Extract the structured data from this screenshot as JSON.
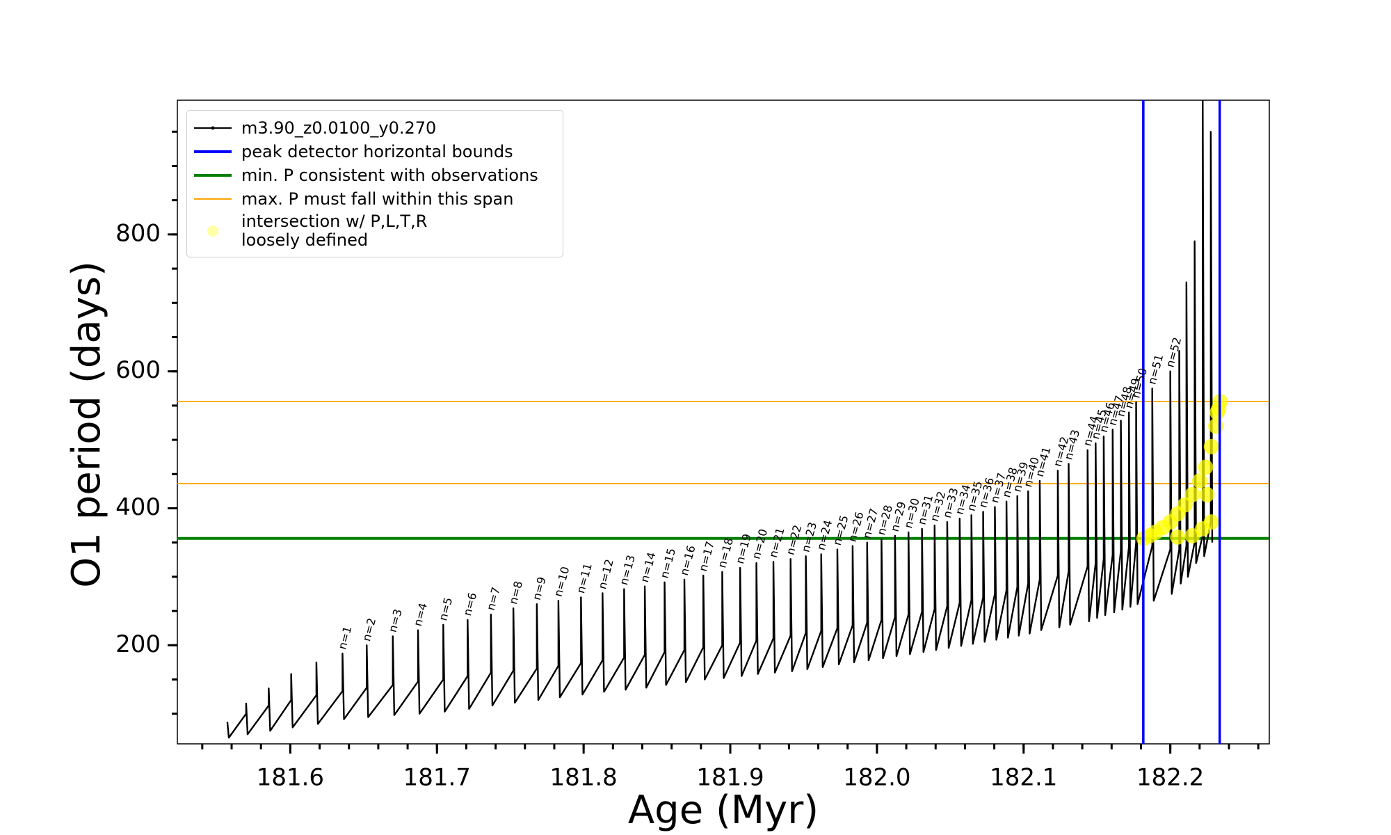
{
  "chart_data": {
    "type": "line",
    "xlabel": "Age (Myr)",
    "ylabel": "O1 period (days)",
    "xlim": [
      181.523,
      182.2675
    ],
    "ylim": [
      56,
      996
    ],
    "xticks": [
      181.6,
      181.7,
      181.8,
      181.9,
      {
        "value": 182.0,
        "label": "182.0"
      },
      182.1,
      182.2
    ],
    "yticks": [
      200,
      400,
      600,
      800
    ],
    "xminorticks": [
      181.54,
      181.56,
      181.58,
      181.6,
      181.62,
      181.64,
      181.66,
      181.68,
      181.7,
      181.72,
      181.74,
      181.76,
      181.78,
      181.8,
      181.82,
      181.84,
      181.86,
      181.88,
      181.9,
      181.92,
      181.94,
      181.96,
      181.98,
      182.0,
      182.02,
      182.04,
      182.06,
      182.08,
      182.1,
      182.12,
      182.14,
      182.16,
      182.18,
      182.2,
      182.22,
      182.24,
      182.26
    ],
    "yminorticks": [
      100,
      150,
      200,
      250,
      300,
      350,
      400,
      450,
      500,
      550,
      600,
      650,
      700,
      750,
      800,
      850,
      900,
      950
    ],
    "legend": "upper left",
    "series": [
      {
        "name": "m3.90_z0.0100_y0.270",
        "color": "#000000",
        "x": [
          181.5571,
          181.5581,
          181.5699,
          181.5699,
          181.5709,
          181.5853,
          181.5853,
          181.5863,
          181.6006,
          181.6006,
          181.6016,
          181.6178,
          181.6178,
          181.6188,
          181.6356,
          181.6356,
          181.6366,
          181.6521,
          181.6521,
          181.6531,
          181.6699,
          181.6699,
          181.6709,
          181.6871,
          181.6871,
          181.6881,
          181.7043,
          181.7043,
          181.7053,
          181.7209,
          181.7209,
          181.7219,
          181.7368,
          181.7368,
          181.7378,
          181.7521,
          181.7521,
          181.7531,
          181.7681,
          181.7681,
          181.7691,
          181.7828,
          181.7828,
          181.7838,
          181.7982,
          181.7982,
          181.7992,
          181.8129,
          181.8129,
          181.8139,
          181.8276,
          181.8276,
          181.8286,
          181.8417,
          181.8417,
          181.8427,
          181.8552,
          181.8552,
          181.8562,
          181.8687,
          181.8687,
          181.8697,
          181.8816,
          181.8816,
          181.8826,
          181.8945,
          181.8945,
          181.8955,
          181.9067,
          181.9067,
          181.9077,
          181.9178,
          181.9178,
          181.9188,
          181.9294,
          181.9294,
          181.9304,
          181.9411,
          181.9411,
          181.9421,
          181.9515,
          181.9515,
          181.9525,
          181.962,
          181.962,
          181.963,
          181.973,
          181.973,
          181.974,
          181.9834,
          181.9834,
          181.9844,
          181.9933,
          181.9933,
          181.9943,
          182.0031,
          182.0031,
          182.0041,
          182.0123,
          182.0123,
          182.0133,
          182.0215,
          182.0215,
          182.0225,
          182.0307,
          182.0307,
          182.0317,
          182.0393,
          182.0393,
          182.0403,
          182.0479,
          182.0479,
          182.0489,
          182.0564,
          182.0564,
          182.0574,
          182.0644,
          182.0644,
          182.0654,
          182.0724,
          182.0724,
          182.0734,
          182.0804,
          182.0804,
          182.0814,
          182.0883,
          182.0883,
          182.0893,
          182.0957,
          182.0957,
          182.0967,
          182.1031,
          182.1031,
          182.1041,
          182.111,
          182.111,
          182.112,
          182.1233,
          182.1233,
          182.1243,
          182.1307,
          182.1307,
          182.1317,
          182.1436,
          182.1436,
          182.1446,
          182.1491,
          182.1491,
          182.1501,
          182.1546,
          182.1546,
          182.1556,
          182.1607,
          182.1607,
          182.1617,
          182.1663,
          182.1663,
          182.1673,
          182.1718,
          182.1718,
          182.1728,
          182.1767,
          182.1767,
          182.1777,
          182.1877,
          182.1877,
          182.1887,
          182.2,
          182.2,
          182.201,
          182.2061,
          182.2061,
          182.2071,
          182.211,
          182.211,
          182.212,
          182.2166,
          182.2166,
          182.2176,
          182.2221,
          182.2221,
          182.2231,
          182.2276,
          182.2276,
          182.2286
        ],
        "values": [
          88,
          65,
          100,
          115,
          70,
          112,
          137,
          75,
          120,
          158,
          80,
          127,
          175,
          85,
          133,
          188,
          92,
          138,
          200,
          95,
          142,
          213,
          98,
          147,
          222,
          100,
          150,
          230,
          103,
          155,
          237,
          107,
          160,
          245,
          112,
          163,
          254,
          116,
          166,
          260,
          120,
          170,
          265,
          124,
          174,
          270,
          128,
          178,
          276,
          132,
          182,
          282,
          135,
          186,
          286,
          138,
          190,
          292,
          142,
          193,
          296,
          146,
          197,
          302,
          150,
          200,
          307,
          152,
          204,
          313,
          155,
          207,
          320,
          158,
          210,
          322,
          160,
          214,
          326,
          162,
          218,
          330,
          165,
          221,
          333,
          168,
          225,
          340,
          172,
          229,
          345,
          175,
          233,
          350,
          178,
          237,
          355,
          181,
          241,
          360,
          184,
          245,
          365,
          187,
          249,
          370,
          190,
          253,
          375,
          193,
          257,
          380,
          196,
          262,
          385,
          199,
          266,
          390,
          202,
          270,
          395,
          205,
          275,
          402,
          208,
          280,
          410,
          211,
          285,
          418,
          214,
          290,
          425,
          217,
          296,
          440,
          222,
          302,
          455,
          226,
          308,
          465,
          230,
          315,
          485,
          235,
          320,
          495,
          240,
          326,
          505,
          244,
          332,
          515,
          248,
          338,
          528,
          252,
          344,
          540,
          256,
          350,
          555,
          260,
          345,
          575,
          265,
          340,
          600,
          275,
          340,
          630,
          290,
          345,
          730,
          300,
          350,
          790,
          320,
          360,
          1000,
          330,
          380,
          950,
          350
        ]
      },
      {
        "name": "intersection w/ P,L,T,R\nloosely defined",
        "color": "#ffff00",
        "type": "scatter",
        "x": [
          182.182,
          182.186,
          182.19,
          182.195,
          182.2,
          182.205,
          182.21,
          182.215,
          182.22,
          182.224,
          182.228,
          182.231,
          182.233,
          182.234,
          182.205,
          182.215,
          182.222,
          182.228,
          182.225,
          182.232
        ],
        "values": [
          356,
          360,
          365,
          372,
          380,
          392,
          405,
          420,
          440,
          460,
          490,
          520,
          545,
          556,
          358,
          360,
          370,
          380,
          420,
          540
        ]
      }
    ],
    "vlines": [
      {
        "name": "peak detector horizontal bounds",
        "color": "#0000ff",
        "values": [
          182.1816,
          182.2337
        ]
      }
    ],
    "hlines": [
      {
        "name": "min. P consistent with observations",
        "color": "#007f00",
        "values": [
          356
        ]
      },
      {
        "name": "max. P must fall within this span",
        "color": "#ffa500",
        "values": [
          436,
          556
        ]
      }
    ],
    "annotations": [
      {
        "text": "n=1",
        "x": 181.6356,
        "y": 188
      },
      {
        "text": "n=2",
        "x": 181.6521,
        "y": 200
      },
      {
        "text": "n=3",
        "x": 181.6699,
        "y": 213
      },
      {
        "text": "n=4",
        "x": 181.6871,
        "y": 222
      },
      {
        "text": "n=5",
        "x": 181.7043,
        "y": 230
      },
      {
        "text": "n=6",
        "x": 181.7209,
        "y": 237
      },
      {
        "text": "n=7",
        "x": 181.7368,
        "y": 245
      },
      {
        "text": "n=8",
        "x": 181.7521,
        "y": 254
      },
      {
        "text": "n=9",
        "x": 181.7681,
        "y": 260
      },
      {
        "text": "n=10",
        "x": 181.7828,
        "y": 265
      },
      {
        "text": "n=11",
        "x": 181.7982,
        "y": 270
      },
      {
        "text": "n=12",
        "x": 181.8129,
        "y": 276
      },
      {
        "text": "n=13",
        "x": 181.8276,
        "y": 282
      },
      {
        "text": "n=14",
        "x": 181.8417,
        "y": 286
      },
      {
        "text": "n=15",
        "x": 181.8552,
        "y": 292
      },
      {
        "text": "n=16",
        "x": 181.8687,
        "y": 296
      },
      {
        "text": "n=17",
        "x": 181.8816,
        "y": 302
      },
      {
        "text": "n=18",
        "x": 181.8945,
        "y": 307
      },
      {
        "text": "n=19",
        "x": 181.9067,
        "y": 313
      },
      {
        "text": "n=20",
        "x": 181.9178,
        "y": 320
      },
      {
        "text": "n=21",
        "x": 181.9294,
        "y": 322
      },
      {
        "text": "n=22",
        "x": 181.9411,
        "y": 326
      },
      {
        "text": "n=23",
        "x": 181.9515,
        "y": 330
      },
      {
        "text": "n=24",
        "x": 181.962,
        "y": 333
      },
      {
        "text": "n=25",
        "x": 181.973,
        "y": 340
      },
      {
        "text": "n=26",
        "x": 181.9834,
        "y": 345
      },
      {
        "text": "n=27",
        "x": 181.9933,
        "y": 350
      },
      {
        "text": "n=28",
        "x": 182.0031,
        "y": 355
      },
      {
        "text": "n=29",
        "x": 182.0123,
        "y": 360
      },
      {
        "text": "n=30",
        "x": 182.0215,
        "y": 365
      },
      {
        "text": "n=31",
        "x": 182.0307,
        "y": 370
      },
      {
        "text": "n=32",
        "x": 182.0393,
        "y": 375
      },
      {
        "text": "n=33",
        "x": 182.0479,
        "y": 380
      },
      {
        "text": "n=34",
        "x": 182.0564,
        "y": 385
      },
      {
        "text": "n=35",
        "x": 182.0644,
        "y": 390
      },
      {
        "text": "n=36",
        "x": 182.0724,
        "y": 395
      },
      {
        "text": "n=37",
        "x": 182.0804,
        "y": 402
      },
      {
        "text": "n=38",
        "x": 182.0883,
        "y": 410
      },
      {
        "text": "n=39",
        "x": 182.0957,
        "y": 418
      },
      {
        "text": "n=40",
        "x": 182.1031,
        "y": 425
      },
      {
        "text": "n=41",
        "x": 182.111,
        "y": 440
      },
      {
        "text": "n=42",
        "x": 182.1233,
        "y": 455
      },
      {
        "text": "n=43",
        "x": 182.1307,
        "y": 465
      },
      {
        "text": "n=44",
        "x": 182.1436,
        "y": 485
      },
      {
        "text": "n=45",
        "x": 182.1491,
        "y": 495
      },
      {
        "text": "n=46",
        "x": 182.1546,
        "y": 505
      },
      {
        "text": "n=47",
        "x": 182.1607,
        "y": 515
      },
      {
        "text": "n=48",
        "x": 182.1663,
        "y": 528
      },
      {
        "text": "n=49",
        "x": 182.1718,
        "y": 540
      },
      {
        "text": "n=50",
        "x": 182.1767,
        "y": 555
      },
      {
        "text": "n=51",
        "x": 182.1877,
        "y": 575
      },
      {
        "text": "n=52",
        "x": 182.2,
        "y": 600
      }
    ]
  }
}
